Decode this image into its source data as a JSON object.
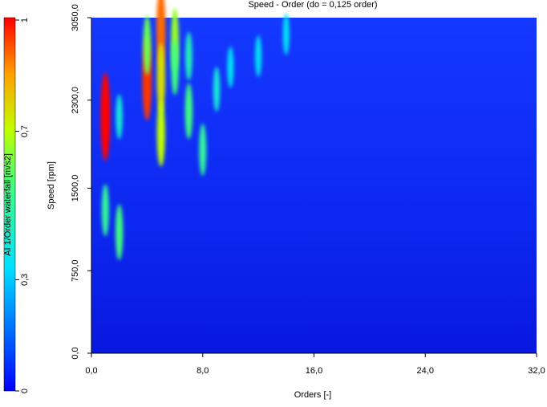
{
  "chart_data": {
    "type": "heatmap-peaks",
    "title": "Speed - Order (do = 0,125 order)",
    "xlabel": "Orders [-]",
    "ylabel": "Speed [rpm]",
    "xlim": [
      0,
      32
    ],
    "ylim": [
      0,
      3050
    ],
    "xticks": [
      {
        "value": 0,
        "label": "0,0"
      },
      {
        "value": 8,
        "label": "8,0"
      },
      {
        "value": 16,
        "label": "16,0"
      },
      {
        "value": 24,
        "label": "24,0"
      },
      {
        "value": 32,
        "label": "32,0"
      }
    ],
    "yticks": [
      {
        "value": 0,
        "label": "0,0"
      },
      {
        "value": 750,
        "label": "750,0"
      },
      {
        "value": 1500,
        "label": "1500,0"
      },
      {
        "value": 2300,
        "label": "2300,0"
      },
      {
        "value": 3050,
        "label": "3050,0"
      }
    ],
    "x": [
      1,
      1,
      2,
      2,
      4,
      4,
      5,
      5,
      5,
      6,
      6,
      7,
      7,
      8,
      9,
      10,
      12,
      14
    ],
    "y": [
      2150,
      1300,
      1100,
      2150,
      2500,
      2800,
      2950,
      2500,
      2000,
      2850,
      2600,
      2200,
      2700,
      1850,
      2400,
      2600,
      2700,
      2900
    ],
    "values": [
      1,
      0.5,
      0.55,
      0.4,
      0.95,
      0.6,
      0.9,
      0.75,
      0.7,
      0.65,
      0.55,
      0.55,
      0.45,
      0.5,
      0.4,
      0.35,
      0.35,
      0.35
    ],
    "colorbar": {
      "label": "AI 1/Order waterfall [m/s2]",
      "lim": [
        0,
        1
      ],
      "ticks": [
        0,
        {
          "value": 0.3,
          "label": "0,3"
        },
        {
          "value": 0.7,
          "label": "0,7"
        },
        1
      ]
    }
  }
}
